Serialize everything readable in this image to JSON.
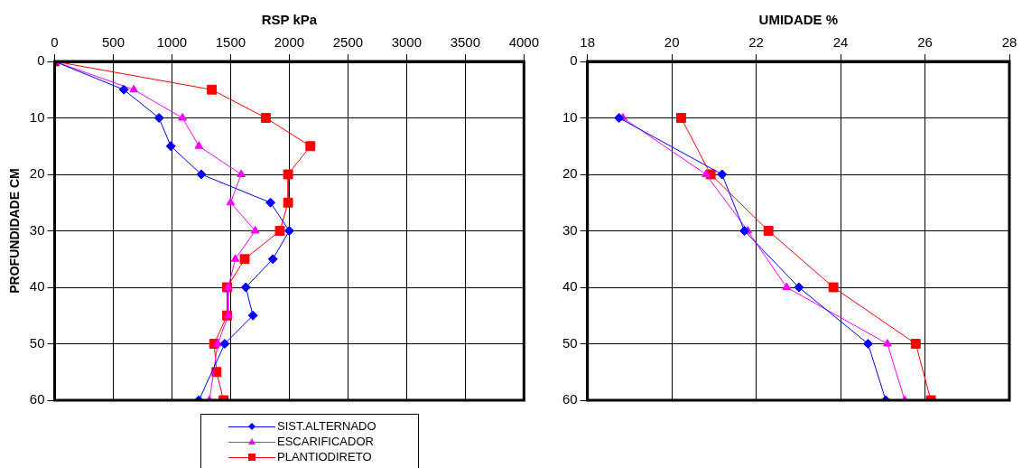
{
  "chart_data": [
    {
      "type": "line",
      "xlabel": "RSP kPa",
      "ylabel": "PROFUNDIDADE CM",
      "grid": true,
      "legend": "bottom",
      "line_style": "solid",
      "xlim": [
        0,
        4000
      ],
      "xticks": [
        0,
        500,
        1000,
        1500,
        2000,
        2500,
        3000,
        3500,
        4000
      ],
      "ylim": [
        60,
        0
      ],
      "yticks": [
        0,
        10,
        20,
        30,
        40,
        50,
        60
      ],
      "series": [
        {
          "name": "SIST.ALTERNADO",
          "color": "#0000ff",
          "marker": "diamond",
          "x": [
            0,
            590,
            890,
            990,
            1250,
            1840,
            2000,
            1860,
            1630,
            1690,
            1450,
            1230
          ],
          "values": [
            0,
            5,
            10,
            15,
            20,
            25,
            30,
            35,
            40,
            45,
            50,
            60
          ]
        },
        {
          "name": "ESCARIFICADOR",
          "color": "#ff00ff",
          "marker": "triangle",
          "x": [
            0,
            675,
            1090,
            1230,
            1590,
            1500,
            1710,
            1540,
            1480,
            1480,
            1390,
            1320
          ],
          "values": [
            0,
            5,
            10,
            15,
            20,
            25,
            30,
            35,
            40,
            45,
            50,
            60
          ]
        },
        {
          "name": "PLANTIODIRETO",
          "color": "#ff0000",
          "marker": "square",
          "x": [
            0,
            1340,
            1800,
            2180,
            1990,
            1990,
            1920,
            1620,
            1470,
            1470,
            1360,
            1380,
            1440
          ],
          "values": [
            0,
            5,
            10,
            15,
            20,
            25,
            30,
            35,
            40,
            45,
            50,
            55,
            60
          ]
        }
      ]
    },
    {
      "type": "line",
      "xlabel": "UMIDADE %",
      "grid": true,
      "line_style": "solid",
      "xlim": [
        18,
        28
      ],
      "xticks": [
        18,
        20,
        22,
        24,
        26,
        28
      ],
      "ylim": [
        60,
        0
      ],
      "yticks": [
        0,
        10,
        20,
        30,
        40,
        50,
        60
      ],
      "series": [
        {
          "color": "#0000ff",
          "marker": "diamond",
          "x": [
            18.75,
            21.19,
            21.72,
            23.01,
            24.65,
            25.07
          ],
          "values": [
            10,
            20,
            30,
            40,
            50,
            60
          ]
        },
        {
          "color": "#ff00ff",
          "marker": "triangle",
          "x": [
            18.84,
            20.81,
            21.8,
            22.72,
            25.11,
            25.52
          ],
          "values": [
            10,
            20,
            30,
            40,
            50,
            60
          ]
        },
        {
          "color": "#ff0000",
          "marker": "square",
          "x": [
            20.22,
            20.92,
            22.29,
            23.83,
            25.78,
            26.14
          ],
          "values": [
            10,
            20,
            30,
            40,
            50,
            60
          ]
        }
      ]
    }
  ]
}
